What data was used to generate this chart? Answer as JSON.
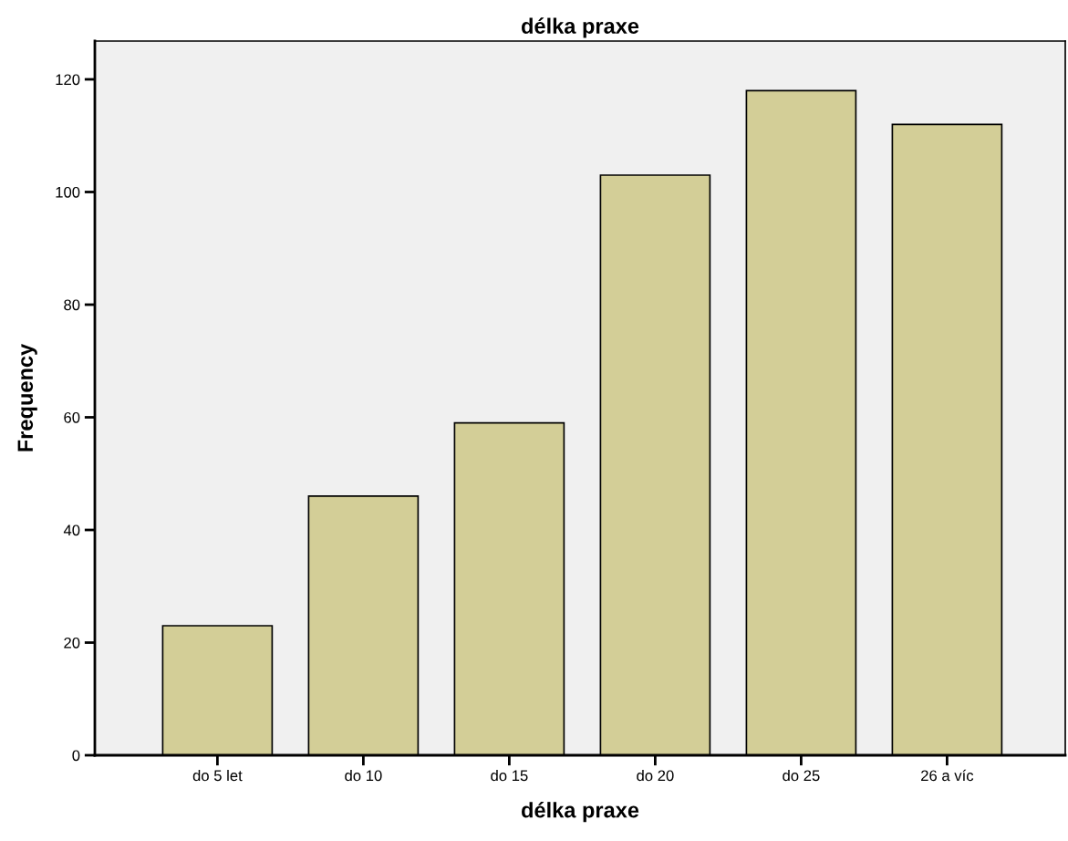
{
  "chart_data": {
    "type": "bar",
    "title": "délka praxe",
    "xlabel": "délka praxe",
    "ylabel": "Frequency",
    "categories": [
      "do 5 let",
      "do 10",
      "do 15",
      "do 20",
      "do 25",
      "26 a víc"
    ],
    "values": [
      23,
      46,
      59,
      103,
      118,
      112
    ],
    "color": "#d3ce97",
    "ylim": [
      0,
      126.8
    ],
    "yticks": [
      0,
      20,
      40,
      60,
      80,
      100,
      120
    ],
    "grid": false,
    "legend": false
  }
}
